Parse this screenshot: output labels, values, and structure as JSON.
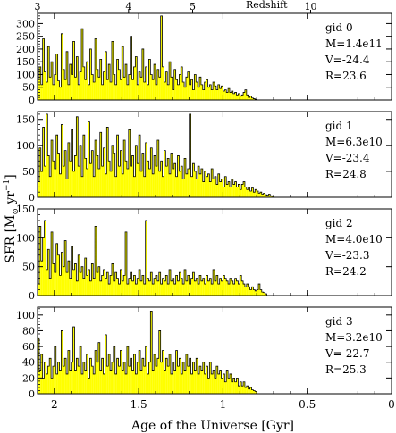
{
  "chart_data": {
    "type": "bar",
    "xlabel": "Age of the Universe [Gyr]",
    "ylabel": "SFR [M",
    "ylabel_sub": "⊙",
    "ylabel_tail": " yr",
    "ylabel_sup": "−1",
    "ylabel_end": "]",
    "xlim": [
      2.1,
      0
    ],
    "x_ticks": [
      2,
      1.5,
      1,
      0.5,
      0
    ],
    "x_tick_labels": [
      "2",
      "1.5",
      "1",
      "0.5",
      "0"
    ],
    "top_axis_label": "Redshift",
    "top_axis_ticks": [
      {
        "z": 3,
        "age": 2.1,
        "label": "3"
      },
      {
        "z": 4,
        "age": 1.56,
        "label": "4"
      },
      {
        "z": 5,
        "age": 1.18,
        "label": "5"
      },
      {
        "z": 10,
        "age": 0.48,
        "label": "10"
      }
    ],
    "fill_color": "#ffff00",
    "line_color": "#000000",
    "panels": [
      {
        "name": "gid 0",
        "lines": [
          "gid 0",
          "M=1.4e11",
          "V=-24.4",
          "R=23.6"
        ],
        "ylim": [
          0,
          340
        ],
        "y_ticks": [
          0,
          50,
          100,
          150,
          200,
          250,
          300
        ],
        "age_start": 2.1,
        "age_end": 0.6,
        "bin": 0.01,
        "values": [
          80,
          130,
          60,
          240,
          110,
          70,
          210,
          90,
          150,
          60,
          100,
          180,
          75,
          50,
          260,
          120,
          80,
          190,
          60,
          140,
          100,
          230,
          90,
          170,
          60,
          110,
          280,
          130,
          80,
          150,
          60,
          200,
          100,
          70,
          240,
          120,
          90,
          160,
          60,
          110,
          190,
          80,
          140,
          70,
          230,
          100,
          60,
          160,
          120,
          80,
          210,
          90,
          140,
          60,
          100,
          250,
          80,
          130,
          170,
          60,
          110,
          90,
          200,
          70,
          130,
          60,
          160,
          100,
          80,
          140,
          60,
          120,
          90,
          330,
          130,
          70,
          110,
          60,
          150,
          90,
          40,
          120,
          80,
          60,
          100,
          130,
          70,
          50,
          90,
          110,
          60,
          80,
          40,
          100,
          70,
          50,
          90,
          60,
          40,
          70,
          80,
          50,
          60,
          40,
          70,
          55,
          40,
          60,
          45,
          55,
          35,
          40,
          30,
          45,
          30,
          35,
          25,
          30,
          20,
          25,
          15,
          20,
          30,
          40,
          20,
          10,
          15,
          8,
          5,
          3
        ]
      },
      {
        "name": "gid 1",
        "lines": [
          "gid 1",
          "M=6.3e10",
          "V=-23.4",
          "R=24.8"
        ],
        "ylim": [
          0,
          165
        ],
        "y_ticks": [
          0,
          50,
          100,
          150
        ],
        "age_start": 2.1,
        "age_end": 0.35,
        "bin": 0.01,
        "values": [
          30,
          95,
          50,
          135,
          60,
          160,
          80,
          40,
          110,
          70,
          55,
          120,
          85,
          45,
          140,
          60,
          90,
          35,
          105,
          70,
          130,
          50,
          80,
          155,
          60,
          100,
          40,
          120,
          75,
          55,
          145,
          65,
          90,
          40,
          110,
          80,
          55,
          125,
          60,
          95,
          45,
          135,
          70,
          50,
          100,
          85,
          40,
          120,
          60,
          90,
          45,
          110,
          70,
          55,
          130,
          60,
          80,
          40,
          100,
          65,
          120,
          50,
          85,
          40,
          105,
          70,
          55,
          95,
          45,
          80,
          60,
          110,
          50,
          70,
          40,
          90,
          60,
          75,
          45,
          85,
          55,
          65,
          40,
          80,
          50,
          60,
          35,
          75,
          45,
          55,
          160,
          40,
          65,
          50,
          35,
          60,
          45,
          55,
          30,
          50,
          40,
          45,
          30,
          55,
          35,
          40,
          25,
          45,
          30,
          35,
          20,
          40,
          25,
          30,
          20,
          35,
          25,
          30,
          20,
          25,
          15,
          25,
          30,
          20,
          15,
          20,
          12,
          18,
          10,
          15,
          12,
          8,
          10,
          6,
          8,
          5,
          4,
          6,
          3,
          2
        ]
      },
      {
        "name": "gid 2",
        "lines": [
          "gid 2",
          "M=4.0e10",
          "V=-23.3",
          "R=24.2"
        ],
        "ylim": [
          0,
          150
        ],
        "y_ticks": [
          0,
          50,
          100,
          150
        ],
        "age_start": 2.1,
        "age_end": 0.6,
        "bin": 0.01,
        "values": [
          20,
          120,
          60,
          100,
          130,
          45,
          80,
          30,
          110,
          55,
          40,
          90,
          70,
          35,
          75,
          50,
          95,
          40,
          60,
          30,
          85,
          45,
          55,
          25,
          70,
          40,
          50,
          30,
          65,
          35,
          45,
          25,
          55,
          30,
          120,
          40,
          50,
          25,
          35,
          45,
          30,
          40,
          20,
          35,
          55,
          25,
          40,
          30,
          20,
          45,
          25,
          35,
          110,
          20,
          30,
          40,
          25,
          35,
          20,
          30,
          45,
          25,
          35,
          20,
          130,
          30,
          25,
          40,
          20,
          30,
          35,
          25,
          40,
          20,
          30,
          25,
          35,
          20,
          45,
          25,
          30,
          20,
          35,
          25,
          40,
          30,
          20,
          45,
          25,
          35,
          20,
          30,
          40,
          25,
          30,
          20,
          35,
          25,
          30,
          20,
          35,
          25,
          30,
          20,
          45,
          25,
          35,
          20,
          30,
          25,
          35,
          30,
          25,
          20,
          30,
          25,
          20,
          30,
          25,
          20,
          35,
          25,
          20,
          15,
          20,
          15,
          10,
          15,
          10,
          8,
          10,
          20,
          10,
          6,
          5,
          3
        ]
      },
      {
        "name": "gid 3",
        "lines": [
          "gid 3",
          "M=3.2e10",
          "V=-22.7",
          "R=25.3"
        ],
        "ylim": [
          0,
          110
        ],
        "y_ticks": [
          0,
          20,
          40,
          60,
          80,
          100
        ],
        "age_start": 2.1,
        "age_end": 0.6,
        "bin": 0.01,
        "values": [
          70,
          30,
          50,
          20,
          40,
          25,
          35,
          45,
          20,
          35,
          60,
          25,
          40,
          30,
          80,
          35,
          45,
          25,
          55,
          30,
          40,
          85,
          30,
          45,
          35,
          60,
          25,
          40,
          30,
          50,
          20,
          45,
          35,
          25,
          55,
          40,
          65,
          30,
          45,
          25,
          75,
          35,
          50,
          30,
          40,
          60,
          25,
          45,
          35,
          55,
          30,
          40,
          25,
          60,
          35,
          45,
          30,
          50,
          25,
          40,
          55,
          30,
          45,
          35,
          60,
          25,
          40,
          105,
          30,
          50,
          35,
          45,
          80,
          40,
          55,
          30,
          45,
          35,
          50,
          25,
          40,
          30,
          55,
          35,
          45,
          25,
          40,
          30,
          50,
          35,
          45,
          25,
          40,
          30,
          45,
          25,
          35,
          30,
          40,
          25,
          35,
          20,
          40,
          25,
          30,
          20,
          35,
          25,
          30,
          20,
          25,
          15,
          30,
          20,
          25,
          15,
          20,
          15,
          20,
          10,
          15,
          10,
          15,
          8,
          10,
          6,
          8,
          5,
          4,
          3
        ]
      }
    ]
  }
}
